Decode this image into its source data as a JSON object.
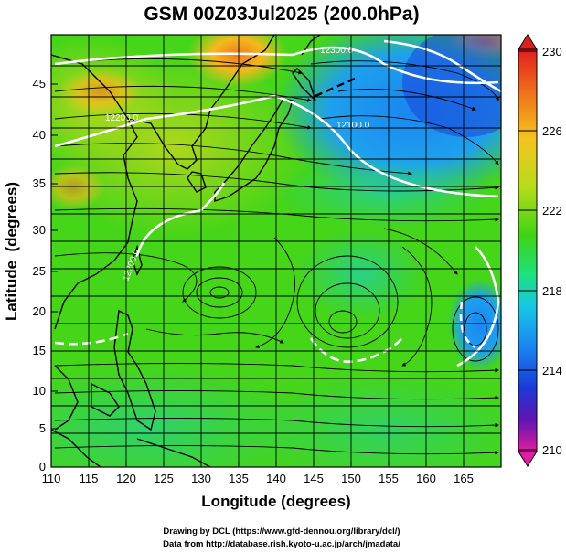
{
  "map": {
    "title": "GSM 00Z03Jul2025 (200.0hPa)",
    "xlabel": "Longitude (degrees)",
    "ylabel": "Latitude  (degrees)",
    "lon_ticks": [
      "110",
      "115",
      "120",
      "125",
      "130",
      "135",
      "140",
      "145",
      "150",
      "155",
      "160",
      "165"
    ],
    "lat_ticks": [
      "0",
      "5",
      "10",
      "15",
      "20",
      "25",
      "30",
      "35",
      "40",
      "45"
    ],
    "extent": {
      "lon": [
        110,
        170
      ],
      "lat": [
        0,
        50
      ]
    },
    "contour_labels": [
      "12300.0",
      "12200.0",
      "12100.0",
      "12200.0"
    ]
  },
  "colorbar": {
    "ticks": [
      "230",
      "226",
      "222",
      "218",
      "214",
      "210"
    ],
    "colors": [
      "#e11e1e",
      "#f07a1c",
      "#f5c21e",
      "#b8dc1a",
      "#3fd414",
      "#1fe07e",
      "#19c6e6",
      "#1a86f0",
      "#1a3ad8",
      "#5f14b4",
      "#e01ea0"
    ]
  },
  "credits": {
    "line1": "Drawing by DCL (https://www.gfd-dennou.org/library/dcl/)",
    "line2": "Data from http://database.rish.kyoto-u.ac.jp/arch/jmadata/"
  }
}
